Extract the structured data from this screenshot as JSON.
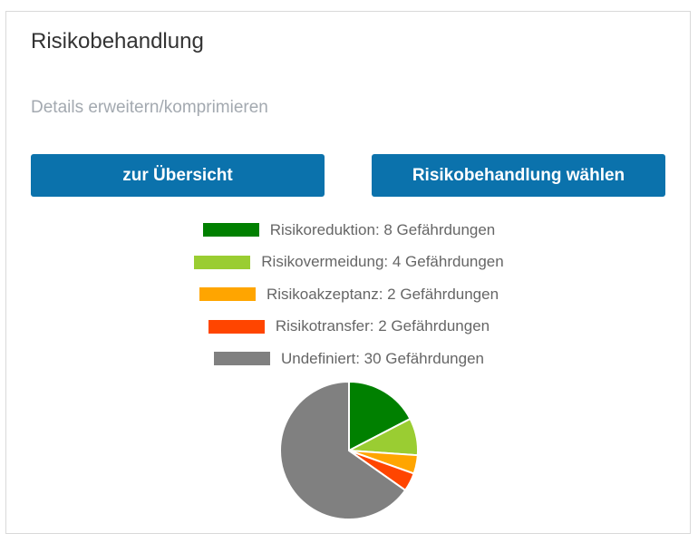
{
  "header": {
    "title": "Risikobehandlung",
    "toggle_label": "Details erweitern/komprimieren"
  },
  "buttons": {
    "overview_label": "zur Übersicht",
    "choose_label": "Risikobehandlung wählen"
  },
  "legend": [
    {
      "label": "Risikoreduktion: 8 Gefährdungen",
      "color": "#008000"
    },
    {
      "label": "Risikovermeidung: 4 Gefährdungen",
      "color": "#9acd32"
    },
    {
      "label": "Risikoakzeptanz: 2 Gefährdungen",
      "color": "#ffa500"
    },
    {
      "label": "Risikotransfer: 2 Gefährdungen",
      "color": "#ff4500"
    },
    {
      "label": "Undefiniert: 30 Gefährdungen",
      "color": "#808080"
    }
  ],
  "chart_data": {
    "type": "pie",
    "categories": [
      "Risikoreduktion",
      "Risikovermeidung",
      "Risikoakzeptanz",
      "Risikotransfer",
      "Undefiniert"
    ],
    "values": [
      8,
      4,
      2,
      2,
      30
    ],
    "colors": [
      "#008000",
      "#9acd32",
      "#ffa500",
      "#ff4500",
      "#808080"
    ],
    "legend_placement": "top"
  }
}
